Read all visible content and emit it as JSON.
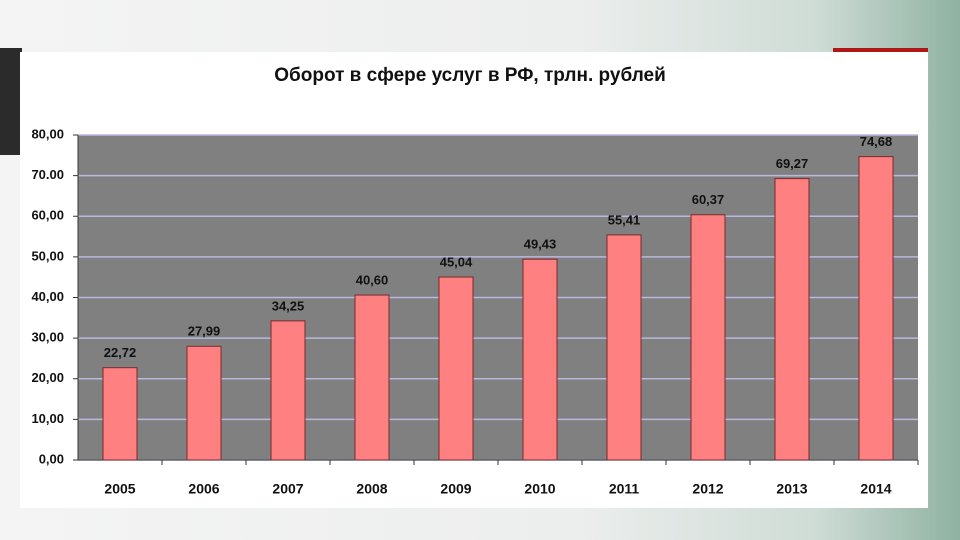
{
  "chart_data": {
    "type": "bar",
    "title": "Оборот в сфере услуг в РФ, трлн. рублей",
    "categories": [
      "2005",
      "2006",
      "2007",
      "2008",
      "2009",
      "2010",
      "2011",
      "2012",
      "2013",
      "2014"
    ],
    "values": [
      22.72,
      27.99,
      34.25,
      40.6,
      45.04,
      49.43,
      55.41,
      60.37,
      69.27,
      74.68
    ],
    "value_labels": [
      "22,72",
      "27,99",
      "34,25",
      "40,60",
      "45,04",
      "49,43",
      "55,41",
      "60,37",
      "69,27",
      "74,68"
    ],
    "color": "#ff8080",
    "ylim": [
      0,
      80
    ],
    "yticks": [
      {
        "value": 0,
        "label": "0,00"
      },
      {
        "value": 10,
        "label": "10,00"
      },
      {
        "value": 20,
        "label": "20,00"
      },
      {
        "value": 30,
        "label": "30,00"
      },
      {
        "value": 40,
        "label": "40,00"
      },
      {
        "value": 50,
        "label": "50,00"
      },
      {
        "value": 60,
        "label": "60,00"
      },
      {
        "value": 70,
        "label": "70.00"
      },
      {
        "value": 80,
        "label": "80,00"
      }
    ],
    "grid": true
  }
}
